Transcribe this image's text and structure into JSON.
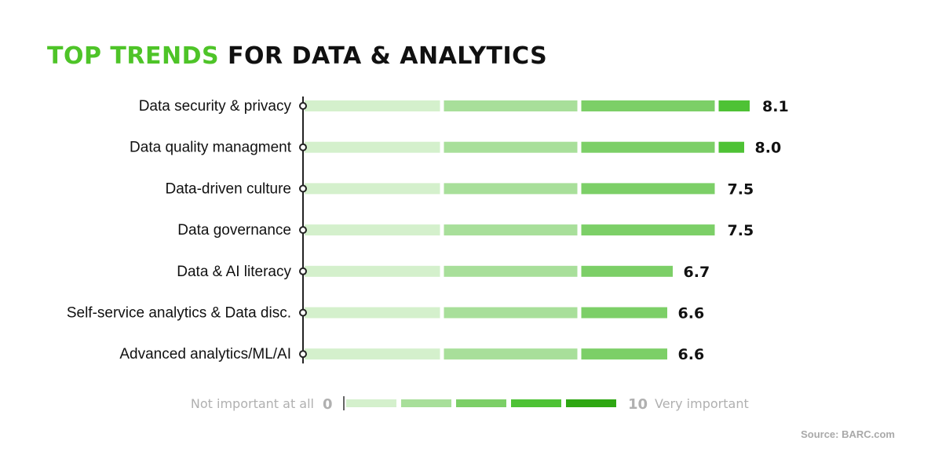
{
  "title": {
    "highlight": "TOP TRENDS",
    "rest": "FOR DATA & ANALYTICS"
  },
  "chart_data": {
    "type": "bar",
    "title": "TOP TRENDS FOR DATA & ANALYTICS",
    "categories": [
      "Data security & privacy",
      "Data quality managment",
      "Data-driven culture",
      "Data governance",
      "Data & AI literacy",
      "Self-service analytics & Data disc.",
      "Advanced analytics/ML/AI"
    ],
    "values": [
      8.1,
      8.0,
      7.5,
      7.5,
      6.7,
      6.6,
      6.6
    ],
    "value_labels": [
      "8.1",
      "8.0",
      "7.5",
      "7.5",
      "6.7",
      "6.6",
      "6.6"
    ],
    "xlim": [
      0,
      10
    ],
    "orientation": "horizontal",
    "segment_colors": [
      "#d4f0cc",
      "#a8df9a",
      "#7ccf67",
      "#4ec235",
      "#2ea712"
    ],
    "legend": {
      "low_label": "Not important at all",
      "low_value": "0",
      "high_value": "10",
      "high_label": "Very important"
    }
  },
  "source": "Source: BARC.com"
}
